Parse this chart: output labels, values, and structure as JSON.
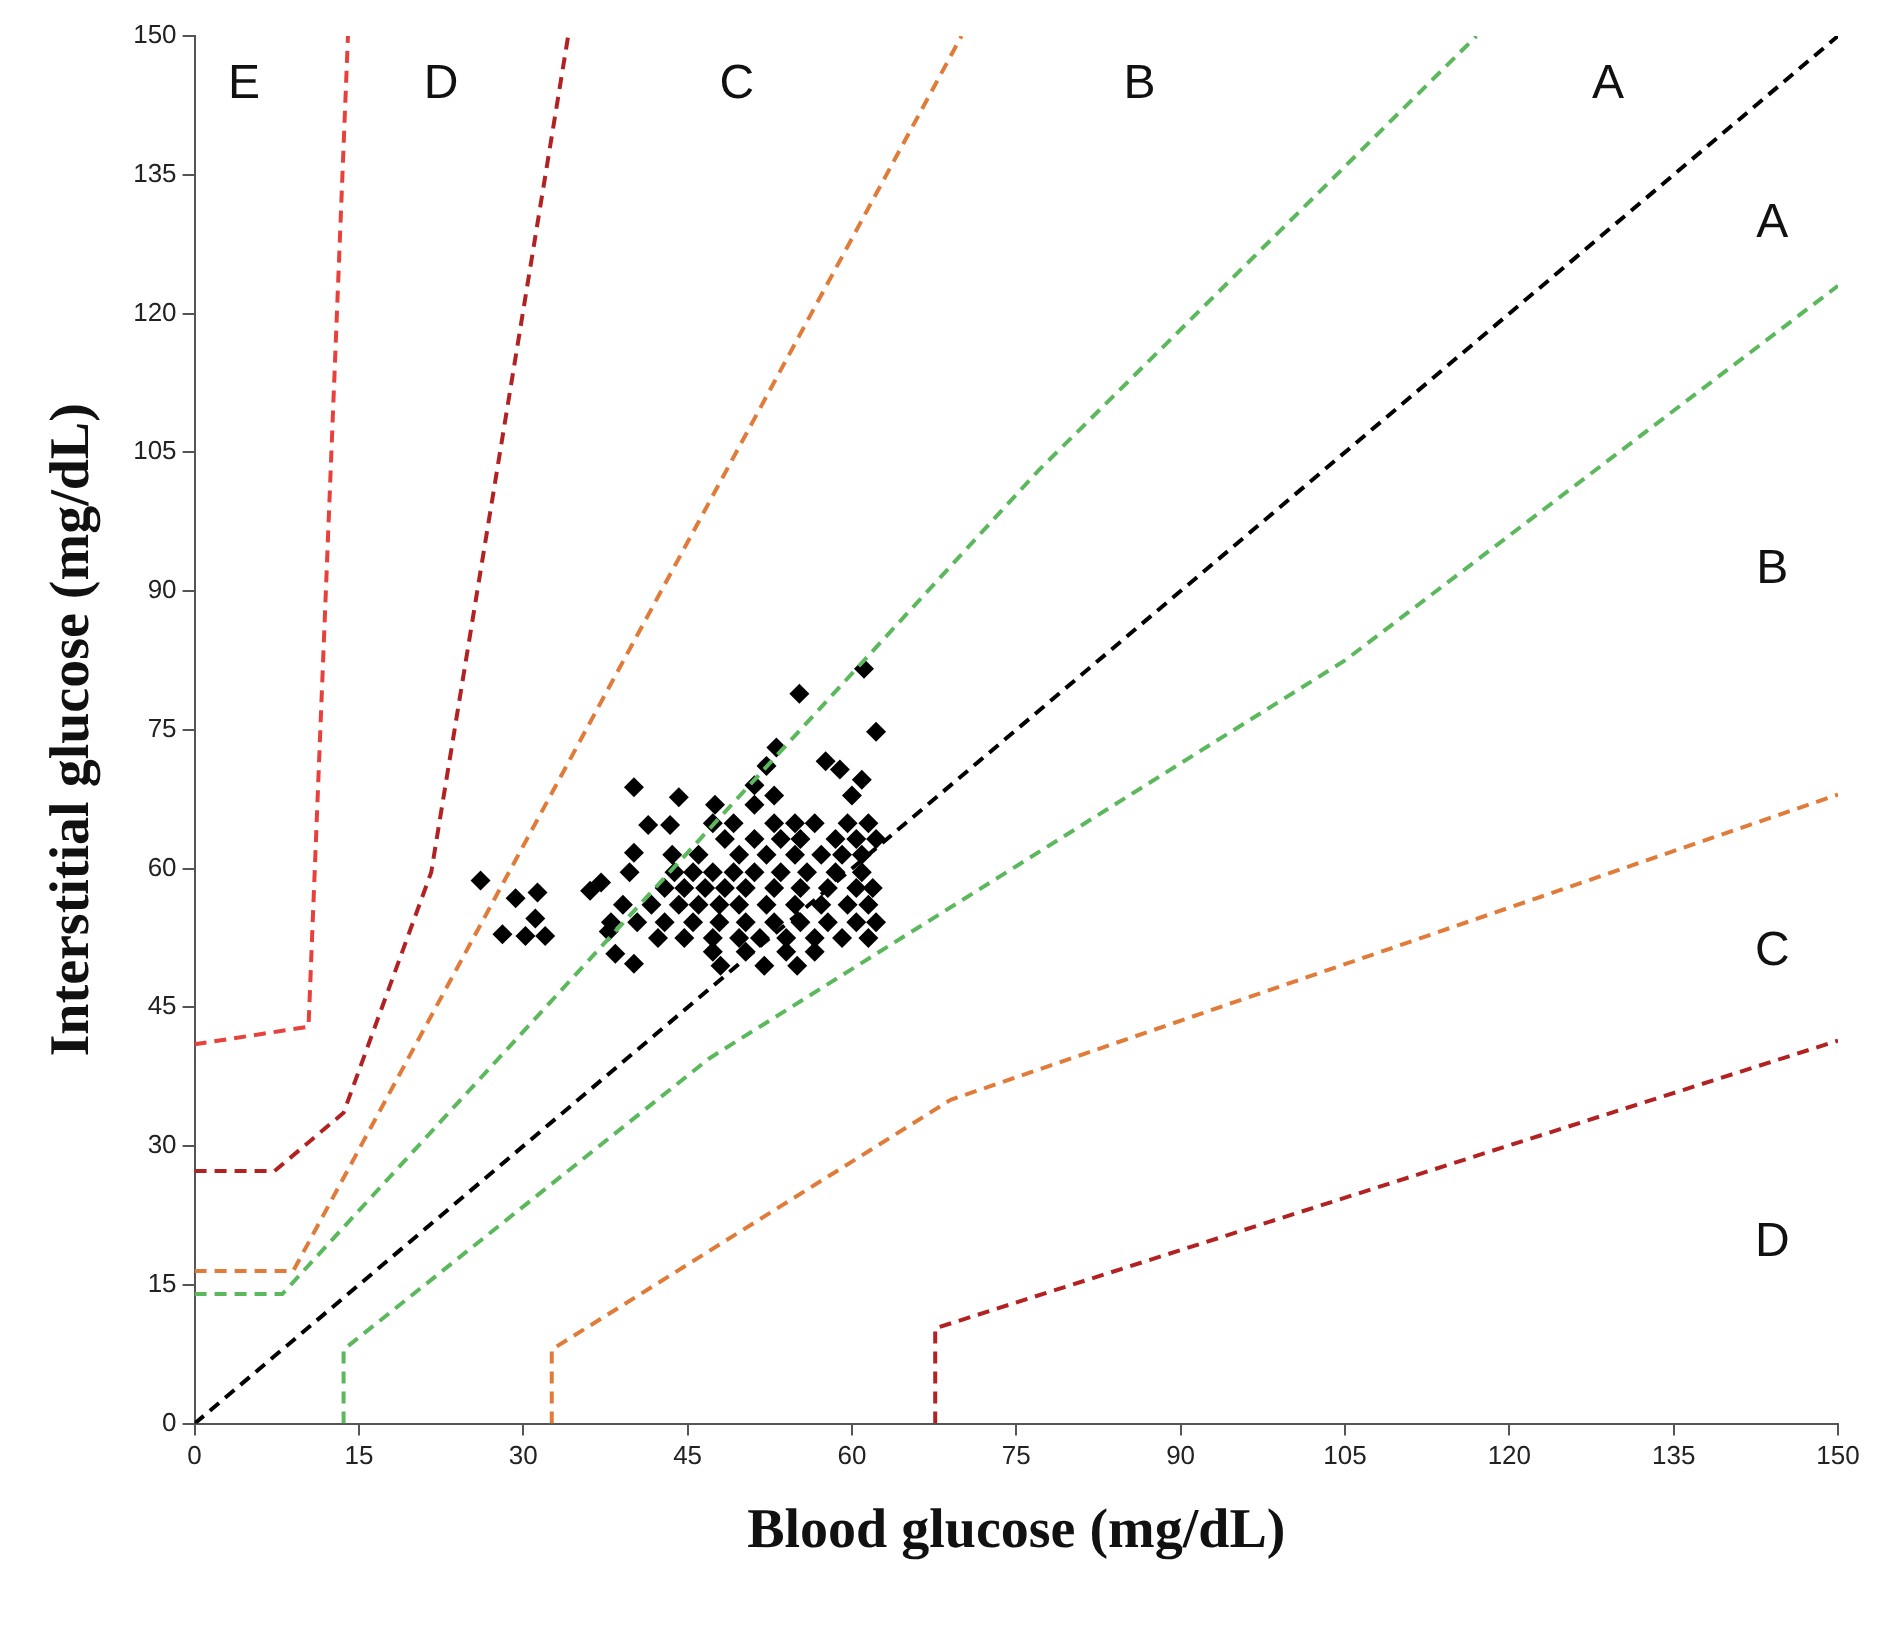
{
  "chart_data": {
    "type": "scatter",
    "xlabel": "Blood glucose (mg/dL)",
    "ylabel": "Interstitial glucose (mg/dL)",
    "xlim": [
      0,
      150
    ],
    "ylim": [
      0,
      150
    ],
    "xticks": [
      0,
      15,
      30,
      45,
      60,
      75,
      90,
      105,
      120,
      135,
      150
    ],
    "yticks": [
      0,
      15,
      30,
      45,
      60,
      75,
      90,
      105,
      120,
      135,
      150
    ],
    "grid": false,
    "legend": false,
    "annotations": [
      "E",
      "D",
      "C",
      "B",
      "A",
      "A",
      "B",
      "C",
      "D"
    ],
    "series": [
      {
        "type": "line",
        "line_style": "dashed",
        "marker": "none",
        "color": "#000000",
        "x": [
          0,
          150
        ],
        "values": [
          0,
          150
        ]
      },
      {
        "type": "line",
        "line_style": "dashed",
        "marker": "none",
        "color": "#5cb85c",
        "x": [
          0,
          8,
          77,
          117
        ],
        "values": [
          14,
          14,
          103,
          150
        ]
      },
      {
        "type": "line",
        "line_style": "dashed",
        "marker": "none",
        "color": "#5cb85c",
        "x": [
          13.6,
          13.6,
          47,
          105,
          150
        ],
        "values": [
          0,
          8,
          39.5,
          82.5,
          123
        ]
      },
      {
        "type": "line",
        "line_style": "dashed",
        "marker": "none",
        "color": "#e07b39",
        "x": [
          0,
          9,
          70
        ],
        "values": [
          16.5,
          16.5,
          150
        ]
      },
      {
        "type": "line",
        "line_style": "dashed",
        "marker": "none",
        "color": "#e07b39",
        "x": [
          32.6,
          32.6,
          69,
          150
        ],
        "values": [
          0,
          8,
          35,
          68
        ]
      },
      {
        "type": "line",
        "line_style": "dashed",
        "marker": "none",
        "color": "#b22222",
        "x": [
          0,
          7.3,
          13.6,
          21.6,
          34.1
        ],
        "values": [
          27.3,
          27.3,
          33.6,
          59.6,
          150
        ]
      },
      {
        "type": "line",
        "line_style": "dashed",
        "marker": "none",
        "color": "#b22222",
        "x": [
          67.6,
          67.6,
          150
        ],
        "values": [
          0,
          10.3,
          41.4
        ]
      },
      {
        "type": "line",
        "line_style": "dashed",
        "marker": "none",
        "color": "#e8413c",
        "x": [
          0,
          10.4,
          14
        ],
        "values": [
          41,
          42.9,
          150
        ]
      },
      {
        "marker": "diamond",
        "color": "#000000",
        "x": [
          26.1,
          29.3,
          31.3,
          31.1,
          28.1,
          30.2,
          32.0,
          36.1,
          37.1,
          40.1,
          44.2,
          41.4,
          43.4,
          40.1,
          39.7,
          37.8,
          38.4,
          40.1,
          55.2,
          61.1,
          62.2,
          53.1,
          52.2,
          57.6,
          58.9,
          60.9,
          60.0,
          51.1,
          52.9,
          47.5,
          51.1,
          47.3,
          49.2,
          52.9,
          54.8,
          56.6,
          59.6,
          61.5,
          48.4,
          51.1,
          53.5,
          55.3,
          58.5,
          60.4,
          62.2,
          43.6,
          46.0,
          49.7,
          52.2,
          54.8,
          57.2,
          59.1,
          60.9,
          43.8,
          45.5,
          47.3,
          49.2,
          51.1,
          53.5,
          55.9,
          58.5,
          60.9,
          42.9,
          44.7,
          46.6,
          48.4,
          50.3,
          52.9,
          55.3,
          57.8,
          60.4,
          61.9,
          39.1,
          41.7,
          44.2,
          46.0,
          47.9,
          49.7,
          52.2,
          54.8,
          57.2,
          59.6,
          61.5,
          38.0,
          40.4,
          42.9,
          45.5,
          47.9,
          50.3,
          52.9,
          55.3,
          57.8,
          60.4,
          62.2,
          42.3,
          44.7,
          47.3,
          49.7,
          51.6,
          54.0,
          56.6,
          59.1,
          61.5,
          47.3,
          50.3,
          54.0,
          56.6,
          48.0,
          52.0,
          55.0
        ],
        "values": [
          58.7,
          56.8,
          57.4,
          54.6,
          52.9,
          52.7,
          52.7,
          57.6,
          58.5,
          68.8,
          67.7,
          64.7,
          64.7,
          61.7,
          59.6,
          53.2,
          50.8,
          49.7,
          78.9,
          81.6,
          74.8,
          73.1,
          71.1,
          71.6,
          70.7,
          69.6,
          67.9,
          69.0,
          67.9,
          66.9,
          66.9,
          64.9,
          64.9,
          64.9,
          64.9,
          64.9,
          64.9,
          64.9,
          63.2,
          63.2,
          63.2,
          63.2,
          63.2,
          63.2,
          63.2,
          61.5,
          61.5,
          61.5,
          61.5,
          61.5,
          61.5,
          61.5,
          61.5,
          59.6,
          59.6,
          59.6,
          59.6,
          59.6,
          59.6,
          59.6,
          59.6,
          59.6,
          57.9,
          57.9,
          57.9,
          57.9,
          57.9,
          57.9,
          57.9,
          57.9,
          57.9,
          57.9,
          56.1,
          56.1,
          56.1,
          56.1,
          56.1,
          56.1,
          56.1,
          56.1,
          56.1,
          56.1,
          56.1,
          54.2,
          54.2,
          54.2,
          54.2,
          54.2,
          54.2,
          54.2,
          54.2,
          54.2,
          54.2,
          54.2,
          52.5,
          52.5,
          52.5,
          52.5,
          52.5,
          52.5,
          52.5,
          52.5,
          52.5,
          51.0,
          51.0,
          51.0,
          51.0,
          49.5,
          49.5,
          49.5
        ]
      }
    ]
  }
}
